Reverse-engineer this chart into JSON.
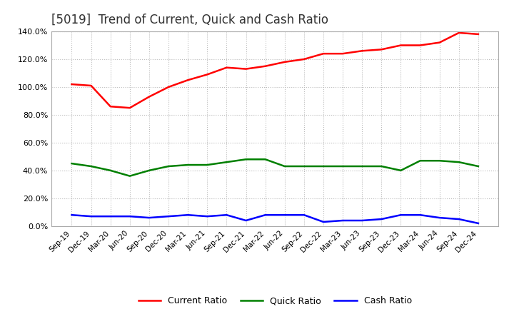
{
  "title": "[5019]  Trend of Current, Quick and Cash Ratio",
  "title_fontsize": 12,
  "ylim": [
    0.0,
    140.0
  ],
  "ytick_values": [
    0,
    20,
    40,
    60,
    80,
    100,
    120,
    140
  ],
  "x_labels": [
    "Sep-19",
    "Dec-19",
    "Mar-20",
    "Jun-20",
    "Sep-20",
    "Dec-20",
    "Mar-21",
    "Jun-21",
    "Sep-21",
    "Dec-21",
    "Mar-22",
    "Jun-22",
    "Sep-22",
    "Dec-22",
    "Mar-23",
    "Jun-23",
    "Sep-23",
    "Dec-23",
    "Mar-24",
    "Jun-24",
    "Sep-24",
    "Dec-24"
  ],
  "current_ratio": [
    102,
    101,
    86,
    85,
    93,
    100,
    105,
    109,
    114,
    113,
    115,
    118,
    120,
    124,
    124,
    126,
    127,
    130,
    130,
    132,
    139,
    138
  ],
  "quick_ratio": [
    45,
    43,
    40,
    36,
    40,
    43,
    44,
    44,
    46,
    48,
    48,
    43,
    43,
    43,
    43,
    43,
    43,
    40,
    47,
    47,
    46,
    43
  ],
  "cash_ratio": [
    8,
    7,
    7,
    7,
    6,
    7,
    8,
    7,
    8,
    4,
    8,
    8,
    8,
    3,
    4,
    4,
    5,
    8,
    8,
    6,
    5,
    2
  ],
  "current_color": "#ff0000",
  "quick_color": "#008000",
  "cash_color": "#0000ff",
  "bg_color": "#ffffff",
  "plot_bg_color": "#ffffff",
  "grid_color": "#bbbbbb",
  "line_width": 1.8
}
